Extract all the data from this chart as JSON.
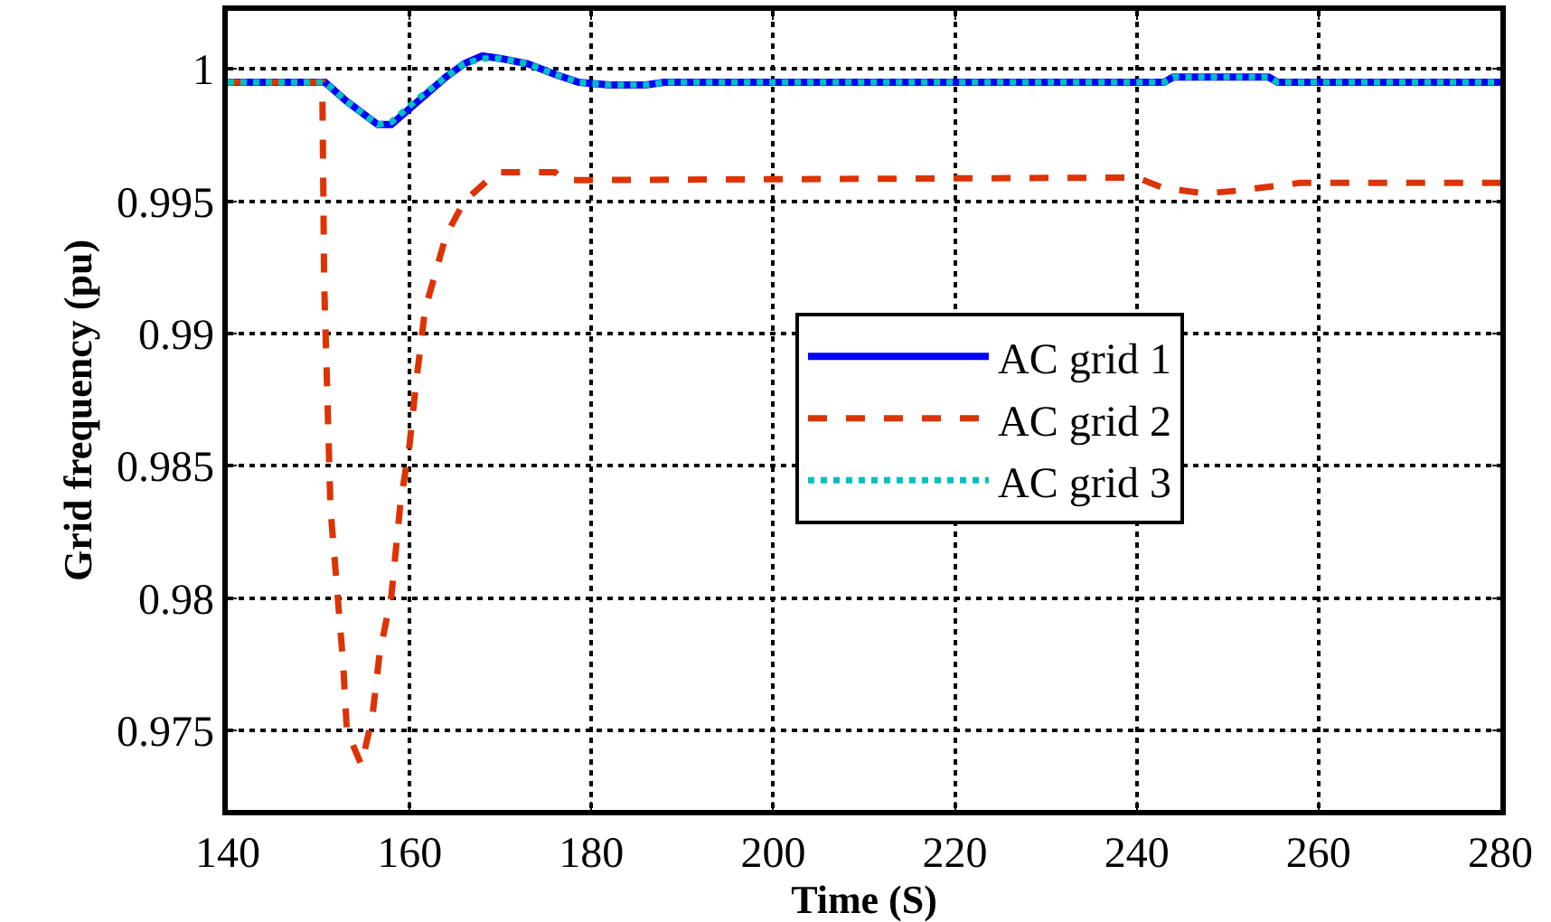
{
  "chart_data": {
    "type": "line",
    "xlabel": "Time (S)",
    "ylabel": "Grid frequency (pu)",
    "xlim": [
      140,
      280
    ],
    "xticks": [
      140,
      160,
      180,
      200,
      220,
      240,
      260,
      280
    ],
    "ylim": [
      0.972,
      1.0022
    ],
    "yticks": [
      0.975,
      0.98,
      0.985,
      0.99,
      0.995,
      1
    ],
    "grid": true,
    "legend": "right",
    "marker": "none",
    "series": [
      {
        "name": "AC grid 1",
        "color": "#0000ff",
        "line_style": "solid",
        "x": [
          140,
          150.7,
          153,
          156.5,
          158,
          161,
          164,
          166,
          168,
          170,
          173,
          176,
          178.6,
          182,
          186,
          188,
          243,
          244,
          254.5,
          255.5,
          280
        ],
        "values": [
          0.9995,
          0.9995,
          0.9988,
          0.9979,
          0.9979,
          0.9988,
          0.9997,
          1.0002,
          1.0005,
          1.0004,
          1.0002,
          0.9998,
          0.9995,
          0.9994,
          0.9994,
          0.9995,
          0.9995,
          0.9997,
          0.9997,
          0.9995,
          0.9995
        ]
      },
      {
        "name": "AC grid 2",
        "color": "#dd3300",
        "line_style": "dashed",
        "x": [
          140,
          150.4,
          150.6,
          151.3,
          152.7,
          153.1,
          154.7,
          155.9,
          156.7,
          158,
          159,
          160,
          160.7,
          161.7,
          164,
          166,
          169.6,
          176,
          177,
          240,
          243,
          247.5,
          251,
          258,
          280
        ],
        "values": [
          0.9995,
          0.9995,
          0.992,
          0.9834,
          0.9775,
          0.975,
          0.9737,
          0.9755,
          0.9779,
          0.9801,
          0.9836,
          0.9858,
          0.9881,
          0.9909,
          0.9937,
          0.995,
          0.9961,
          0.9961,
          0.9958,
          0.9959,
          0.9955,
          0.9953,
          0.9954,
          0.9957,
          0.9957
        ]
      },
      {
        "name": "AC grid 3",
        "color": "#00c0c0",
        "line_style": "dotted",
        "x": [
          140,
          150.7,
          153,
          156.5,
          158,
          161,
          164,
          166,
          168,
          170,
          173,
          176,
          178.6,
          182,
          186,
          188,
          243,
          244,
          254.5,
          255.5,
          280
        ],
        "values": [
          0.9995,
          0.9995,
          0.9988,
          0.9979,
          0.998,
          0.9989,
          0.9997,
          1.0002,
          1.0004,
          1.0004,
          1.0002,
          0.9998,
          0.9995,
          0.9994,
          0.9994,
          0.9995,
          0.9995,
          0.9997,
          0.9997,
          0.9995,
          0.9995
        ]
      }
    ]
  }
}
